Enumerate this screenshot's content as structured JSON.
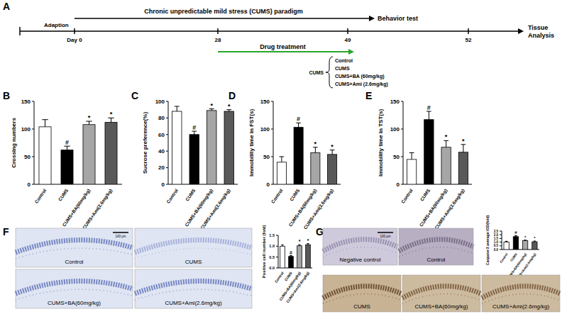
{
  "chart_data": [
    {
      "type": "bar",
      "title": "B",
      "y_label": "Crossing numbers",
      "categories": [
        "Control",
        "CUMS",
        "CUMS+BA(60mg/kg)",
        "CUMS+Ami(2.6mg/kg)"
      ],
      "values": [
        104,
        62,
        108,
        112
      ],
      "errors": [
        13,
        7,
        6,
        8
      ],
      "significance": [
        null,
        "#",
        "*",
        "*"
      ],
      "colors": [
        "#ffffff",
        "#000000",
        "#a6a6a6",
        "#595959"
      ],
      "ylim": [
        0,
        150
      ],
      "yticks": [
        0,
        50,
        100,
        150
      ]
    },
    {
      "type": "bar",
      "title": "C",
      "y_label": "Sucrose preference(%)",
      "categories": [
        "Control",
        "CUMS",
        "CUMS+BA(60mg/kg)",
        "CUMS+Ami(2.6mg/kg)"
      ],
      "values": [
        88,
        60,
        89,
        88
      ],
      "errors": [
        6,
        4,
        2,
        2
      ],
      "significance": [
        null,
        "#",
        "*",
        "*"
      ],
      "colors": [
        "#ffffff",
        "#000000",
        "#a6a6a6",
        "#595959"
      ],
      "ylim": [
        0,
        100
      ],
      "yticks": [
        0,
        20,
        40,
        60,
        80,
        100
      ]
    },
    {
      "type": "bar",
      "title": "D",
      "y_label": "Immobility time in FST(s)",
      "categories": [
        "Control",
        "CUMS",
        "CUMS+BA(60mg/kg)",
        "CUMS+Ami(2.6mg/kg)"
      ],
      "values": [
        40,
        103,
        57,
        54
      ],
      "errors": [
        10,
        8,
        10,
        8
      ],
      "significance": [
        null,
        "#",
        "*",
        "*"
      ],
      "colors": [
        "#ffffff",
        "#000000",
        "#a6a6a6",
        "#595959"
      ],
      "ylim": [
        0,
        150
      ],
      "yticks": [
        0,
        50,
        100,
        150
      ]
    },
    {
      "type": "bar",
      "title": "E",
      "y_label": "Immobility time in TST(s)",
      "categories": [
        "Control",
        "CUMS",
        "CUMS+BA(60mg/kg)",
        "CUMS+Ami(2.6mg/kg)"
      ],
      "values": [
        45,
        117,
        67,
        58
      ],
      "errors": [
        12,
        15,
        12,
        14
      ],
      "significance": [
        null,
        "#",
        "*",
        "*"
      ],
      "colors": [
        "#ffffff",
        "#000000",
        "#a6a6a6",
        "#595959"
      ],
      "ylim": [
        0,
        150
      ],
      "yticks": [
        0,
        50,
        100,
        150
      ]
    },
    {
      "type": "bar",
      "title": "F",
      "y_label": "Positive cell number (fold)",
      "categories": [
        "Control",
        "CUMS",
        "CUMS+BA(60mg/kg)",
        "CUMS+Ami(2.6mg/kg)"
      ],
      "values": [
        1.0,
        0.53,
        1.02,
        1.07
      ],
      "errors": [
        0.06,
        0.04,
        0.05,
        0.05
      ],
      "significance": [
        null,
        "#",
        "*",
        "*"
      ],
      "colors": [
        "#ffffff",
        "#000000",
        "#a6a6a6",
        "#595959"
      ],
      "ylim": [
        0,
        1.5
      ],
      "yticks": [
        {
          "value": 0,
          "label": "0.0"
        },
        {
          "value": 0.5,
          "label": "0.5"
        },
        {
          "value": 1,
          "label": "1.0"
        },
        {
          "value": 1.5,
          "label": "1.5"
        }
      ]
    },
    {
      "type": "bar",
      "title": "G",
      "y_label": "Caspase-3 average IOD(fold)",
      "categories": [
        "Control",
        "CUMS",
        "CUMS+BA(60mg/kg)",
        "CUMS+Ami(2.6mg/kg)"
      ],
      "values": [
        1.0,
        1.75,
        1.2,
        1.05
      ],
      "errors": [
        0.12,
        0.15,
        0.08,
        0.1
      ],
      "significance": [
        null,
        "#",
        "*",
        "*"
      ],
      "colors": [
        "#ffffff",
        "#000000",
        "#a6a6a6",
        "#595959"
      ],
      "ylim": [
        0,
        2.5
      ],
      "yticks": [
        {
          "value": 0,
          "label": "0.0"
        },
        {
          "value": 0.5,
          "label": "0.5"
        },
        {
          "value": 1,
          "label": "1.0"
        },
        {
          "value": 1.5,
          "label": "1.5"
        },
        {
          "value": 2,
          "label": "2.0"
        },
        {
          "value": 2.5,
          "label": "2.5"
        }
      ]
    }
  ],
  "timeline": {
    "label": "A",
    "paradigm": "Chronic unpredictable mild stress (CUMS) paradigm",
    "adaption": "Adaption",
    "behavior": "Behavior test",
    "tissue": [
      "Tissue",
      "Analysis"
    ],
    "drug": "Drug treatment",
    "days": [
      "Day 0",
      "28",
      "49",
      "52"
    ],
    "groups_label": "CUMS",
    "groups": [
      "Control",
      "CUMS",
      "CUMS+BA (60mg/kg)",
      "CUMS+Ami (2.6mg/kg)"
    ]
  },
  "micrographs": {
    "F": {
      "tiles": [
        "Control",
        "CUMS",
        "CUMS+BA(60mg/kg)",
        "CUMS+Ami(2.6mg/kg)"
      ],
      "scale_bar": "100 μm"
    },
    "G": {
      "tiles": [
        "Negative control",
        "Control",
        "CUMS",
        "CUMS+BA(60mg/kg)",
        "CUMS+Ami(2.6mg/kg)"
      ],
      "scale_bar": "100 μm"
    }
  }
}
